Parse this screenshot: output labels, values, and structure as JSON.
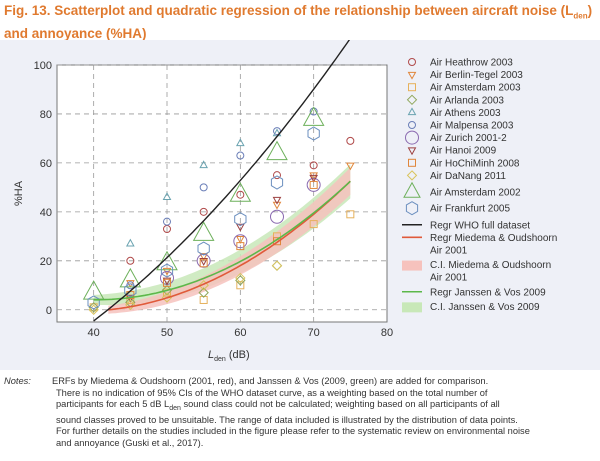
{
  "title_line1": "Fig. 13. Scatterplot and quadratic regression of the relationship between aircraft noise (L",
  "title_sub": "den",
  "title_line1_end": ")",
  "title_line2": "and annoyance (%HA)",
  "chart_data": {
    "type": "scatter",
    "xlabel_main": "L",
    "xlabel_sub": "den",
    "xlabel_unit": " (dB)",
    "ylabel": "%HA",
    "xlim": [
      35,
      80
    ],
    "ylim": [
      -5,
      100
    ],
    "xticks": [
      40,
      50,
      60,
      70,
      80
    ],
    "yticks": [
      0,
      20,
      40,
      60,
      80,
      100
    ],
    "grid": true,
    "legend_position": "right",
    "series": [
      {
        "name": "Air Heathrow 2003",
        "marker": "circle",
        "color": "#b04a4a",
        "size": 3.5,
        "points": [
          [
            45,
            20
          ],
          [
            50,
            33
          ],
          [
            55,
            40
          ],
          [
            60,
            47
          ],
          [
            65,
            55
          ],
          [
            70,
            59
          ],
          [
            75,
            69
          ]
        ]
      },
      {
        "name": "Air Berlin-Tegel 2003",
        "marker": "triangle-down",
        "color": "#e0863b",
        "size": 3.5,
        "points": [
          [
            45,
            11
          ],
          [
            50,
            16
          ],
          [
            55,
            22
          ],
          [
            60,
            29
          ],
          [
            65,
            43
          ],
          [
            70,
            55
          ],
          [
            75,
            59
          ]
        ]
      },
      {
        "name": "Air Amsterdam 2003",
        "marker": "square",
        "color": "#e6b15c",
        "size": 3.5,
        "points": [
          [
            40,
            1
          ],
          [
            45,
            4
          ],
          [
            50,
            7
          ],
          [
            55,
            4
          ],
          [
            60,
            10
          ],
          [
            65,
            30
          ],
          [
            70,
            35
          ],
          [
            75,
            39
          ]
        ]
      },
      {
        "name": "Air Arlanda 2003",
        "marker": "diamond",
        "color": "#8fa65a",
        "size": 3.5,
        "points": [
          [
            40,
            1
          ],
          [
            45,
            3
          ],
          [
            50,
            8
          ],
          [
            55,
            7
          ],
          [
            60,
            12
          ],
          [
            65,
            18
          ]
        ]
      },
      {
        "name": "Air Athens 2003",
        "marker": "triangle",
        "color": "#6aa3b0",
        "size": 3.5,
        "points": [
          [
            45,
            27
          ],
          [
            50,
            46
          ],
          [
            55,
            59
          ],
          [
            60,
            68
          ],
          [
            65,
            72
          ]
        ]
      },
      {
        "name": "Air Malpensa 2003",
        "marker": "circle",
        "color": "#6b7fb8",
        "size": 3.5,
        "points": [
          [
            45,
            10
          ],
          [
            50,
            36
          ],
          [
            55,
            50
          ],
          [
            60,
            63
          ],
          [
            65,
            73
          ],
          [
            70,
            81
          ]
        ]
      },
      {
        "name": "Air Zurich 2001-2",
        "marker": "circle",
        "color": "#8a6ab0",
        "size": 6.5,
        "points": [
          [
            50,
            13
          ],
          [
            55,
            20
          ],
          [
            60,
            28
          ],
          [
            65,
            38
          ],
          [
            70,
            51
          ]
        ]
      },
      {
        "name": "Air Hanoi 2009",
        "marker": "triangle-down",
        "color": "#9c4040",
        "size": 3.5,
        "points": [
          [
            45,
            5
          ],
          [
            50,
            12
          ],
          [
            55,
            20
          ],
          [
            60,
            34
          ],
          [
            65,
            45
          ],
          [
            70,
            54
          ]
        ]
      },
      {
        "name": "Air HoChiMinh 2008",
        "marker": "square",
        "color": "#e0863b",
        "size": 3.5,
        "points": [
          [
            45,
            6
          ],
          [
            50,
            11
          ],
          [
            55,
            19
          ],
          [
            60,
            26
          ],
          [
            65,
            28
          ],
          [
            70,
            51
          ]
        ]
      },
      {
        "name": "Air DaNang 2011",
        "marker": "diamond",
        "color": "#d9c35c",
        "size": 3.5,
        "points": [
          [
            40,
            0
          ],
          [
            45,
            2
          ],
          [
            50,
            5
          ],
          [
            55,
            10
          ],
          [
            60,
            13
          ],
          [
            65,
            18
          ]
        ]
      },
      {
        "name": "Air Amsterdam 2002",
        "marker": "triangle",
        "color": "#6db05b",
        "size": 10,
        "points": [
          [
            40,
            7
          ],
          [
            45,
            12
          ],
          [
            50,
            19
          ],
          [
            55,
            31
          ],
          [
            60,
            47
          ],
          [
            65,
            64
          ],
          [
            70,
            78
          ]
        ]
      },
      {
        "name": "Air Frankfurt 2005",
        "marker": "hexagon",
        "color": "#6b8fbf",
        "size": 6.5,
        "points": [
          [
            40,
            3
          ],
          [
            45,
            8
          ],
          [
            50,
            16
          ],
          [
            55,
            25
          ],
          [
            60,
            37
          ],
          [
            65,
            52
          ],
          [
            70,
            72
          ]
        ]
      }
    ],
    "curves": [
      {
        "name": "Regr WHO full dataset",
        "color": "#222222",
        "x_range": [
          40,
          75
        ],
        "coef": [
          -50.9693,
          0.0204,
          0.0285
        ]
      },
      {
        "name_line1": "Regr Miedema & Oudshoorn",
        "name_line2": "Air 2001",
        "color": "#e05a3a",
        "x_range": [
          42,
          75
        ],
        "coef": [
          -9.199,
          0.03932,
          0.2939,
          42
        ],
        "form": "cubic_offset",
        "ci_lower_offset": -4,
        "ci_upper_offset": 4,
        "ci_color": "#f6c2bd",
        "ci_name_line1": "C.I. Miedema & Oudshoorn",
        "ci_name_line2": "Air 2001"
      },
      {
        "name": "Regr Janssen & Vos 2009",
        "color": "#5cb84a",
        "x_range": [
          40,
          75
        ],
        "coef": [
          4.08,
          -0.0167,
          0.01333
        ],
        "form": "jv",
        "ci_lower_offset": -5,
        "ci_upper_offset": 5,
        "ci_color": "#c8e8b8",
        "ci_name": "C.I. Janssen & Vos 2009"
      }
    ]
  },
  "notes": {
    "label": "Notes:",
    "line1": "ERFs by Miedema & Oudshoorn (2001, red), and Janssen & Vos (2009, green) are added for comparison.",
    "line2": "There is no indication of 95% CIs of the WHO dataset curve, as a weighting based on the total number of",
    "line3a": "participants for each 5 dB L",
    "line3sub": "den",
    "line3b": " sound class could not be calculated; weighting based on all participants of all",
    "line4": "sound classes proved to be unsuitable. The range of data included is illustrated by the distribution of data points.",
    "line5": "For further details on the studies included in the figure please refer to the systematic review on environmental noise",
    "line6": "and annoyance (Guski et al., 2017)."
  }
}
